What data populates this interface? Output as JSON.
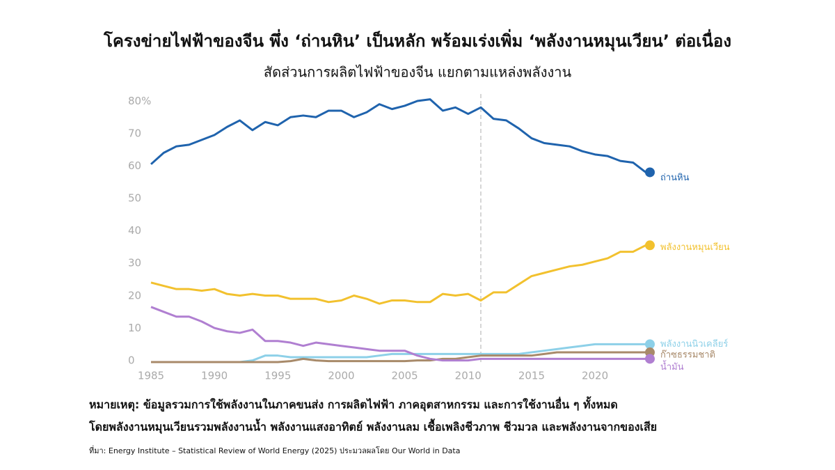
{
  "chart_data": {
    "type": "line",
    "title": "โครงข่ายไฟฟ้าของจีน พึ่ง ‘ถ่านหิน’ เป็นหลัก พร้อมเร่งเพิ่ม ‘พลังงานหมุนเวียน’ ต่อเนื่อง",
    "subtitle": "สัดส่วนการผลิตไฟฟ้าของจีน แยกตามแหล่งพลังงาน",
    "x": [
      1985,
      1986,
      1987,
      1988,
      1989,
      1990,
      1991,
      1992,
      1993,
      1994,
      1995,
      1996,
      1997,
      1998,
      1999,
      2000,
      2001,
      2002,
      2003,
      2004,
      2005,
      2006,
      2007,
      2008,
      2009,
      2010,
      2011,
      2012,
      2013,
      2014,
      2015,
      2016,
      2017,
      2018,
      2019,
      2020,
      2021,
      2022,
      2023,
      2024
    ],
    "series": [
      {
        "name": "ถ่านหิน",
        "color": "#1f63ad",
        "values": [
          61,
          64.5,
          66.5,
          67,
          68.5,
          70,
          72.5,
          74.5,
          71.5,
          74,
          73,
          75.5,
          76,
          75.5,
          77.5,
          77.5,
          75.5,
          77,
          79.5,
          78,
          79,
          80.5,
          81,
          77.5,
          78.5,
          76.5,
          78.5,
          75,
          74.5,
          72,
          69,
          67.5,
          67,
          66.5,
          65,
          64,
          63.5,
          62,
          61.5,
          58.5
        ]
      },
      {
        "name": "พลังงานหมุนเวียน",
        "color": "#f2c12e",
        "values": [
          24.5,
          23.5,
          22.5,
          22.5,
          22,
          22.5,
          21,
          20.5,
          21,
          20.5,
          20.5,
          19.5,
          19.5,
          19.5,
          18.5,
          19,
          20.5,
          19.5,
          18,
          19,
          19,
          18.5,
          18.5,
          21,
          20.5,
          21,
          19,
          21.5,
          21.5,
          24,
          26.5,
          27.5,
          28.5,
          29.5,
          30,
          31,
          32,
          34,
          34,
          36
        ]
      },
      {
        "name": "พลังงานนิวเคลียร์",
        "color": "#8dd0e8",
        "values": [
          0,
          0,
          0,
          0,
          0,
          0,
          0,
          0,
          0.5,
          2,
          2,
          1.5,
          1.5,
          1.5,
          1.5,
          1.5,
          1.5,
          1.5,
          2,
          2.5,
          2.5,
          2.5,
          2.5,
          2.5,
          2.5,
          2.5,
          2.5,
          2.5,
          2.5,
          2.5,
          3,
          3.5,
          4,
          4.5,
          5,
          5.5,
          5.5,
          5.5,
          5.5,
          5.5
        ]
      },
      {
        "name": "ก๊าซธรรมชาติ",
        "color": "#a88a6a",
        "values": [
          0,
          0,
          0,
          0,
          0,
          0,
          0,
          0,
          0,
          0,
          0,
          0.3,
          1,
          0.5,
          0.3,
          0.3,
          0.3,
          0.3,
          0.3,
          0.3,
          0.3,
          0.5,
          0.5,
          1,
          1,
          1.5,
          2,
          2,
          2,
          2,
          2,
          2.5,
          3,
          3,
          3,
          3,
          3,
          3,
          3,
          3
        ]
      },
      {
        "name": "น้ำมัน",
        "color": "#b07fd1",
        "values": [
          17,
          15.5,
          14,
          14,
          12.5,
          10.5,
          9.5,
          9,
          10,
          6.5,
          6.5,
          6,
          5,
          6,
          5.5,
          5,
          4.5,
          4,
          3.5,
          3.5,
          3.5,
          2,
          1,
          0.5,
          0.5,
          0.5,
          1,
          1,
          1,
          1,
          1,
          1,
          1,
          1,
          1,
          1,
          1,
          1,
          1,
          1
        ]
      }
    ],
    "xlim": [
      1985,
      2024
    ],
    "xticks": [
      1985,
      1990,
      1995,
      2000,
      2005,
      2010,
      2015,
      2020
    ],
    "ylim": [
      0,
      85
    ],
    "yticks": [
      0,
      10,
      20,
      30,
      40,
      50,
      60,
      70,
      {
        "value": 80,
        "label": "80%"
      }
    ],
    "reference_line_x": 2011,
    "notes": [
      "หมายเหตุ: ข้อมูลรวมการใช้พลังงานในภาคขนส่ง การผลิตไฟฟ้า ภาคอุตสาหกรรม และการใช้งานอื่น ๆ ทั้งหมด",
      "โดยพลังงานหมุนเวียนรวมพลังงานน้ำ พลังงานแสงอาทิตย์ พลังงานลม เชื้อเพลิงชีวภาพ ชีวมวล และพลังงานจากของเสีย"
    ],
    "source": "ที่มา: Energy Institute – Statistical Review of World Energy (2025) ประมวลผลโดย Our World in Data"
  }
}
